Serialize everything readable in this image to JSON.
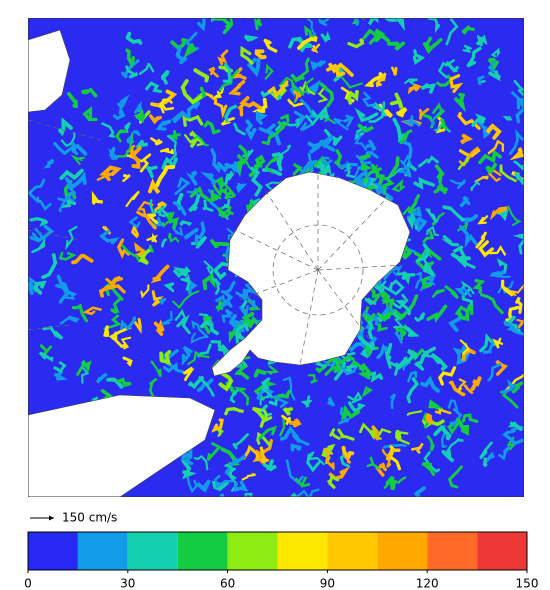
{
  "scale_arrow": {
    "label": "150 cm/s"
  },
  "colorbar": {
    "lim": [
      0,
      150
    ],
    "ticks": [
      0,
      30,
      60,
      90,
      120,
      150
    ],
    "colors": [
      "#2828f5",
      "#129be8",
      "#15d0b0",
      "#14cc44",
      "#8cec14",
      "#ffe800",
      "#ffc800",
      "#ffa800",
      "#ff6a28",
      "#ee3838"
    ]
  }
}
